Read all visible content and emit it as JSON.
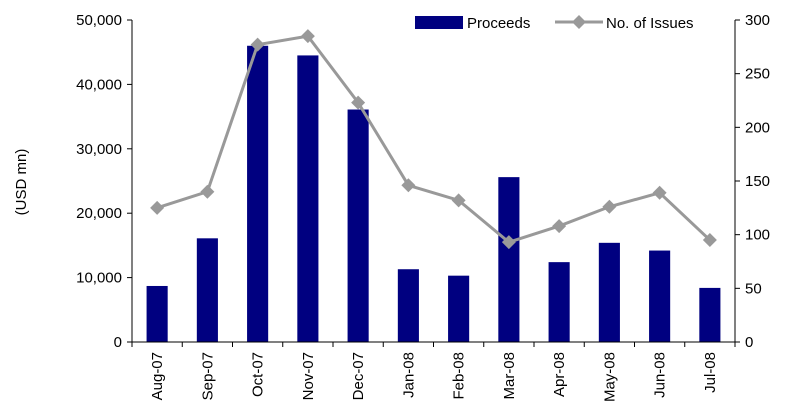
{
  "chart_data": {
    "type": "bar",
    "title": "",
    "categories": [
      "Aug-07",
      "Sep-07",
      "Oct-07",
      "Nov-07",
      "Dec-07",
      "Jan-08",
      "Feb-08",
      "Mar-08",
      "Apr-08",
      "May-08",
      "Jun-08",
      "Jul-08"
    ],
    "series": [
      {
        "name": "Proceeds",
        "type": "bar",
        "axis": "left",
        "color": "#000080",
        "values": [
          8700,
          16100,
          46000,
          44500,
          36100,
          11300,
          10300,
          25600,
          12400,
          15400,
          14200,
          8400
        ]
      },
      {
        "name": "No. of Issues",
        "type": "line",
        "axis": "right",
        "color": "#999999",
        "marker": "diamond",
        "values": [
          125,
          140,
          277,
          285,
          223,
          146,
          132,
          93,
          108,
          126,
          139,
          95
        ]
      }
    ],
    "y_left": {
      "label": "(USD mn)",
      "min": 0,
      "max": 50000,
      "ticks": [
        "0",
        "10,000",
        "20,000",
        "30,000",
        "40,000",
        "50,000"
      ]
    },
    "y_right": {
      "label": "",
      "min": 0,
      "max": 300,
      "ticks": [
        "0",
        "50",
        "100",
        "150",
        "200",
        "250",
        "300"
      ]
    },
    "xlabel": "",
    "legend_position": "top-right",
    "grid": false
  }
}
